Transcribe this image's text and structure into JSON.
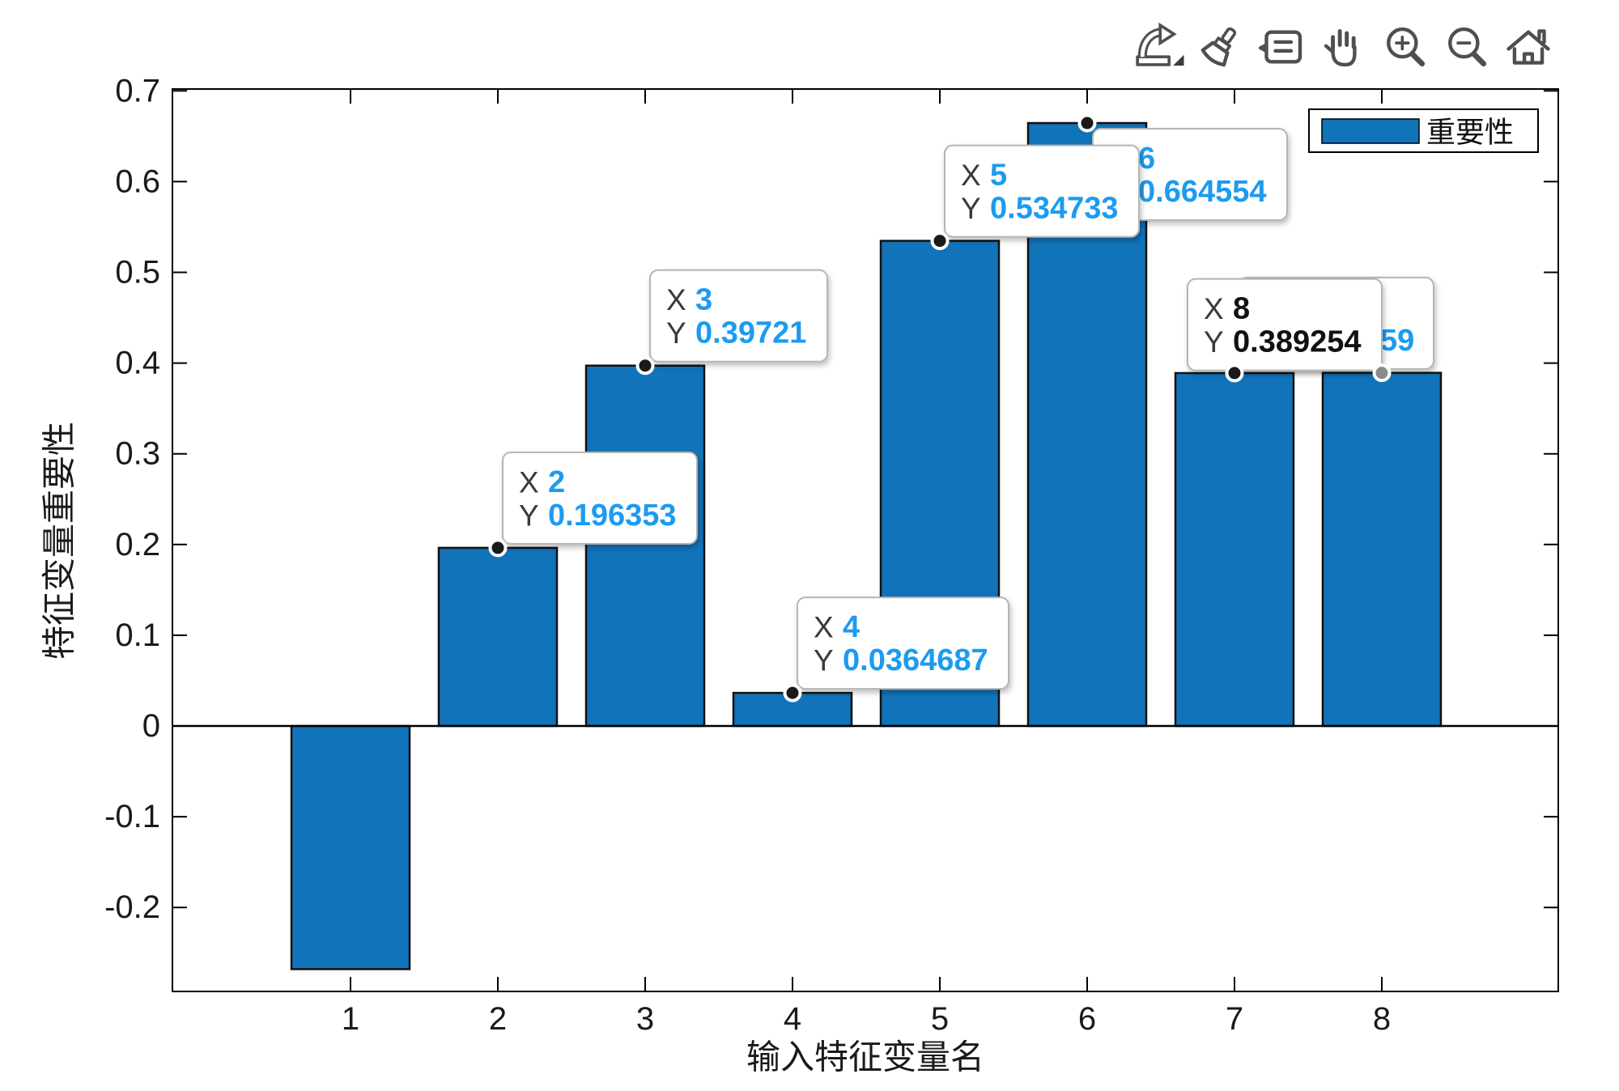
{
  "chart_data": {
    "type": "bar",
    "categories": [
      "1",
      "2",
      "3",
      "4",
      "5",
      "6",
      "7",
      "8"
    ],
    "values": [
      -0.268,
      0.196353,
      0.39721,
      0.0364687,
      0.534733,
      0.664554,
      0.389,
      0.389254
    ],
    "series": [
      {
        "name": "重要性"
      }
    ],
    "xlabel": "输入特征变量名",
    "ylabel": "特征变量重要性",
    "ylim": [
      -0.293,
      0.7
    ],
    "ytick_labels": [
      "0.7",
      "0.6",
      "0.5",
      "0.4",
      "0.3",
      "0.2",
      "0.1",
      "0",
      "-0.1",
      "-0.2"
    ],
    "grid": false,
    "legend_position": "northeast",
    "bar_color": "#1173B9",
    "bar_edge_color": "#111111"
  },
  "legend": {
    "label": "重要性"
  },
  "label_color": "#3a3a3a",
  "datatips": [
    {
      "name": "datatip-7",
      "cat": 7,
      "dir": "ur",
      "w_chars": 8,
      "rows": [
        {
          "label": "",
          "value": ""
        },
        {
          "label": "",
          "value": "59",
          "value_dx": 118
        }
      ],
      "value_color": "#1C9BF0",
      "dot_color": "#1a1a1a"
    },
    {
      "name": "datatip-8",
      "cat": 8,
      "dir": "ul",
      "w_chars": 8,
      "rows": [
        {
          "label": "X",
          "value": "8"
        },
        {
          "label": "Y",
          "value": "0.389254"
        }
      ],
      "value_color": "#111111",
      "dot_color": "#8a8a8a"
    },
    {
      "name": "datatip-6",
      "cat": 6,
      "dir": "dr",
      "w_chars": 8,
      "rows": [
        {
          "label": "X",
          "value": "6"
        },
        {
          "label": "Y",
          "value": "0.664554"
        }
      ],
      "value_color": "#1C9BF0",
      "dot_color": "#1a1a1a"
    },
    {
      "name": "datatip-5",
      "cat": 5,
      "dir": "ur",
      "w_chars": 8,
      "rows": [
        {
          "label": "X",
          "value": "5"
        },
        {
          "label": "Y",
          "value": "0.534733"
        }
      ],
      "value_color": "#1C9BF0",
      "dot_color": "#1a1a1a"
    },
    {
      "name": "datatip-2",
      "cat": 2,
      "dir": "ur",
      "w_chars": 8,
      "rows": [
        {
          "label": "X",
          "value": "2"
        },
        {
          "label": "Y",
          "value": "0.196353"
        }
      ],
      "value_color": "#1C9BF0",
      "dot_color": "#1a1a1a"
    },
    {
      "name": "datatip-3",
      "cat": 3,
      "dir": "ur",
      "w_chars": 7,
      "rows": [
        {
          "label": "X",
          "value": "3"
        },
        {
          "label": "Y",
          "value": "0.39721"
        }
      ],
      "value_color": "#1C9BF0",
      "dot_color": "#1a1a1a"
    },
    {
      "name": "datatip-4",
      "cat": 4,
      "dir": "ur",
      "w_chars": 9,
      "rows": [
        {
          "label": "X",
          "value": "4"
        },
        {
          "label": "Y",
          "value": "0.0364687"
        }
      ],
      "value_color": "#1C9BF0",
      "dot_color": "#1a1a1a"
    }
  ],
  "toolbar": {
    "icons": [
      "export",
      "brush",
      "datatip",
      "pan",
      "zoom-in",
      "zoom-out",
      "home"
    ]
  }
}
